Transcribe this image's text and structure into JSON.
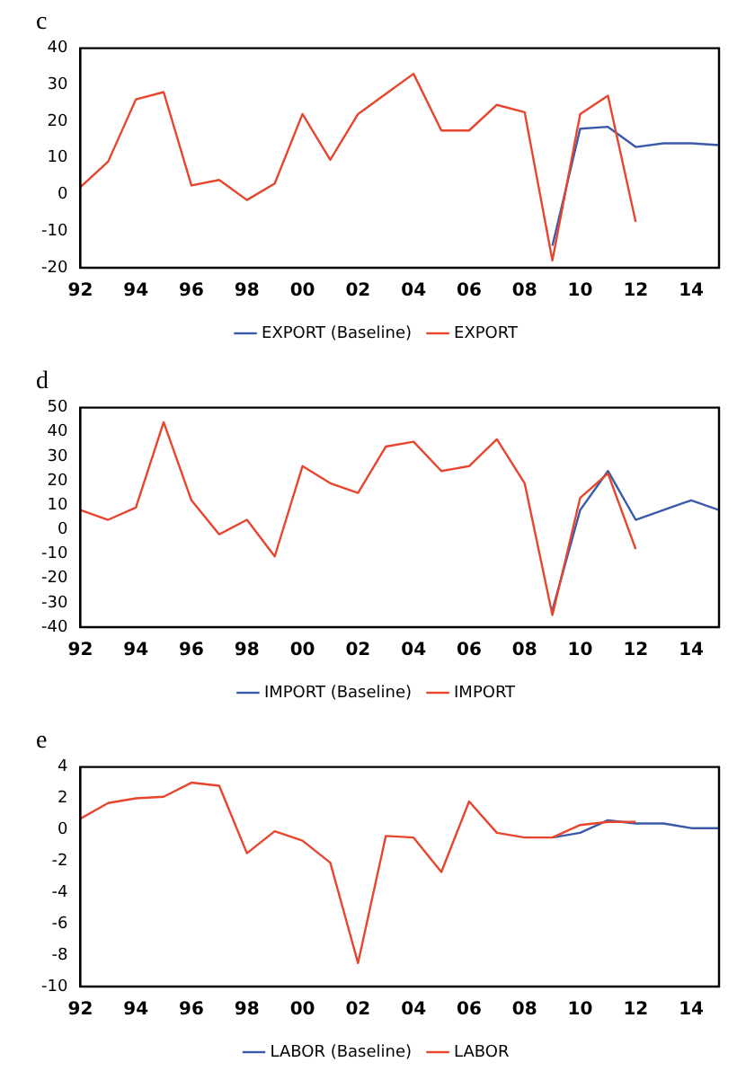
{
  "chart_data": [
    {
      "type": "line",
      "title": "c",
      "legend": "bottom",
      "grid": false,
      "marker": "none",
      "xlim": [
        1992,
        2015
      ],
      "xticks": [
        {
          "value": 1992,
          "label": "92"
        },
        {
          "value": 1994,
          "label": "94"
        },
        {
          "value": 1996,
          "label": "96"
        },
        {
          "value": 1998,
          "label": "98"
        },
        {
          "value": 2000,
          "label": "00"
        },
        {
          "value": 2002,
          "label": "02"
        },
        {
          "value": 2004,
          "label": "04"
        },
        {
          "value": 2006,
          "label": "06"
        },
        {
          "value": 2008,
          "label": "08"
        },
        {
          "value": 2010,
          "label": "10"
        },
        {
          "value": 2012,
          "label": "12"
        },
        {
          "value": 2014,
          "label": "14"
        }
      ],
      "ylim": [
        -20,
        40
      ],
      "yticks": [
        -20,
        -10,
        0,
        10,
        20,
        30,
        40
      ],
      "series": [
        {
          "name": "EXPORT (Baseline)",
          "color": "#3a5aa8",
          "x": [
            2009,
            2010,
            2011,
            2012,
            2013,
            2014,
            2015
          ],
          "values": [
            -14,
            18,
            18.5,
            13,
            14,
            14,
            13.5
          ]
        },
        {
          "name": "EXPORT",
          "color": "#e8452e",
          "x": [
            1992,
            1993,
            1994,
            1995,
            1996,
            1997,
            1998,
            1999,
            2000,
            2001,
            2002,
            2003,
            2004,
            2005,
            2006,
            2007,
            2008,
            2009,
            2010,
            2011,
            2012
          ],
          "values": [
            2,
            9,
            26,
            28,
            2.5,
            4,
            -1.5,
            3,
            22,
            9.5,
            22,
            27.5,
            33,
            17.5,
            17.5,
            24.5,
            22.5,
            -18,
            22,
            27,
            -7.5
          ]
        }
      ]
    },
    {
      "type": "line",
      "title": "d",
      "legend": "bottom",
      "grid": false,
      "marker": "none",
      "xlim": [
        1992,
        2015
      ],
      "xticks": [
        {
          "value": 1992,
          "label": "92"
        },
        {
          "value": 1994,
          "label": "94"
        },
        {
          "value": 1996,
          "label": "96"
        },
        {
          "value": 1998,
          "label": "98"
        },
        {
          "value": 2000,
          "label": "00"
        },
        {
          "value": 2002,
          "label": "02"
        },
        {
          "value": 2004,
          "label": "04"
        },
        {
          "value": 2006,
          "label": "06"
        },
        {
          "value": 2008,
          "label": "08"
        },
        {
          "value": 2010,
          "label": "10"
        },
        {
          "value": 2012,
          "label": "12"
        },
        {
          "value": 2014,
          "label": "14"
        }
      ],
      "ylim": [
        -40,
        50
      ],
      "yticks": [
        -40,
        -30,
        -20,
        -10,
        0,
        10,
        20,
        30,
        40,
        50
      ],
      "series": [
        {
          "name": "IMPORT (Baseline)",
          "color": "#3a5aa8",
          "x": [
            2009,
            2010,
            2011,
            2012,
            2013,
            2014,
            2015
          ],
          "values": [
            -33,
            8,
            24,
            4,
            8,
            12,
            8
          ]
        },
        {
          "name": "IMPORT",
          "color": "#e8452e",
          "x": [
            1992,
            1993,
            1994,
            1995,
            1996,
            1997,
            1998,
            1999,
            2000,
            2001,
            2002,
            2003,
            2004,
            2005,
            2006,
            2007,
            2008,
            2009,
            2010,
            2011,
            2012
          ],
          "values": [
            8,
            4,
            9,
            44,
            12,
            -2,
            4,
            -11,
            26,
            19,
            15,
            34,
            36,
            24,
            26,
            37,
            19,
            -35,
            13,
            23,
            -8
          ]
        }
      ]
    },
    {
      "type": "line",
      "title": "e",
      "legend": "bottom",
      "grid": false,
      "marker": "none",
      "xlim": [
        1992,
        2015
      ],
      "xticks": [
        {
          "value": 1992,
          "label": "92"
        },
        {
          "value": 1994,
          "label": "94"
        },
        {
          "value": 1996,
          "label": "96"
        },
        {
          "value": 1998,
          "label": "98"
        },
        {
          "value": 2000,
          "label": "00"
        },
        {
          "value": 2002,
          "label": "02"
        },
        {
          "value": 2004,
          "label": "04"
        },
        {
          "value": 2006,
          "label": "06"
        },
        {
          "value": 2008,
          "label": "08"
        },
        {
          "value": 2010,
          "label": "10"
        },
        {
          "value": 2012,
          "label": "12"
        },
        {
          "value": 2014,
          "label": "14"
        }
      ],
      "ylim": [
        -10,
        4
      ],
      "yticks": [
        -10,
        -8,
        -6,
        -4,
        -2,
        0,
        2,
        4
      ],
      "series": [
        {
          "name": "LABOR (Baseline)",
          "color": "#3a5aa8",
          "x": [
            2009,
            2010,
            2011,
            2012,
            2013,
            2014,
            2015
          ],
          "values": [
            -0.5,
            -0.2,
            0.6,
            0.4,
            0.4,
            0.1,
            0.1
          ]
        },
        {
          "name": "LABOR",
          "color": "#e8452e",
          "x": [
            1992,
            1993,
            1994,
            1995,
            1996,
            1997,
            1998,
            1999,
            2000,
            2001,
            2002,
            2003,
            2004,
            2005,
            2006,
            2007,
            2008,
            2009,
            2010,
            2011,
            2012
          ],
          "values": [
            0.7,
            1.7,
            2,
            2.1,
            3,
            2.8,
            -1.5,
            -0.1,
            -0.7,
            -2.1,
            -8.5,
            -0.4,
            -0.5,
            -2.7,
            1.8,
            -0.2,
            -0.5,
            -0.5,
            0.3,
            0.5,
            0.5
          ]
        }
      ]
    }
  ]
}
